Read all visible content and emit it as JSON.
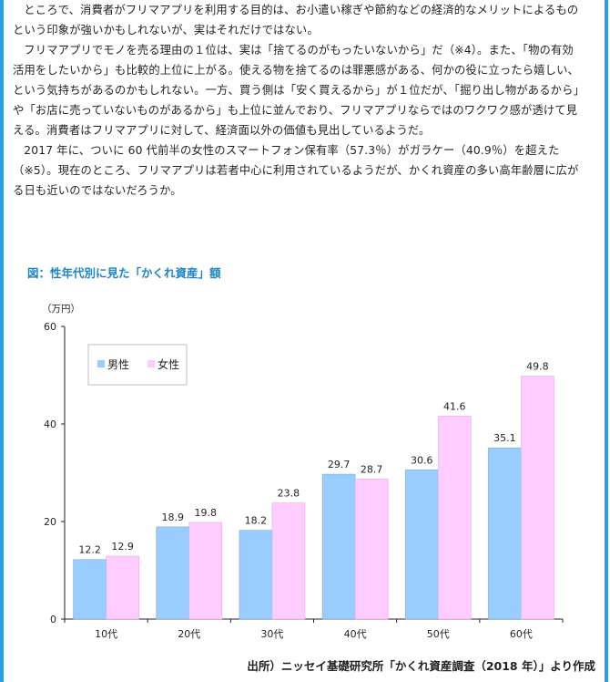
{
  "article": {
    "paragraphs": [
      "ところで、消費者がフリマアプリを利用する目的は、お小遣い稼ぎや節約などの経済的なメリットによるものという印象が強いかもしれないが、実はそれだけではない。",
      "フリマアプリでモノを売る理由の１位は、実は「捨てるのがもったいないから」だ（※4）。また、「物の有効活用をしたいから」も比較的上位に上がる。使える物を捨てるのは罪悪感がある、何かの役に立ったら嬉しい、という気持ちがあるのかもしれない。一方、買う側は「安く買えるから」が１位だが、「掘り出し物があるから」や「お店に売っていないものがあるから」も上位に並んでおり、フリマアプリならではのワクワク感が透けて見える。消費者はフリマアプリに対して、経済面以外の価値も見出しているようだ。",
      "2017 年に、ついに 60 代前半の女性のスマートフォン保有率（57.3％）がガラケー（40.9％）を超えた（※5）。現在のところ、フリマアプリは若者中心に利用されているようだが、かくれ資産の多い高年齢層に広がる日も近いのではないだろうか。"
    ]
  },
  "figure": {
    "title": "図：性年代別に見た「かくれ資産」額",
    "unit": "（万円）",
    "source": "出所）ニッセイ基礎研究所「かくれ資産調査（2018 年）」より作成"
  },
  "colors": {
    "male": "#99ccff",
    "female": "#ffccff",
    "frame": "#2f9fd8",
    "title": "#1a86c8"
  },
  "chart_data": {
    "type": "bar",
    "categories": [
      "10代",
      "20代",
      "30代",
      "40代",
      "50代",
      "60代"
    ],
    "series": [
      {
        "name": "男性",
        "values": [
          12.2,
          18.9,
          18.2,
          29.7,
          30.6,
          35.1
        ]
      },
      {
        "name": "女性",
        "values": [
          12.9,
          19.8,
          23.8,
          28.7,
          41.6,
          49.8
        ]
      }
    ],
    "ylim": [
      0,
      60
    ],
    "yticks": [
      0,
      20,
      40,
      60
    ],
    "ylabel": "（万円）",
    "xlabel": "",
    "grid": false,
    "legend": "top-left"
  }
}
